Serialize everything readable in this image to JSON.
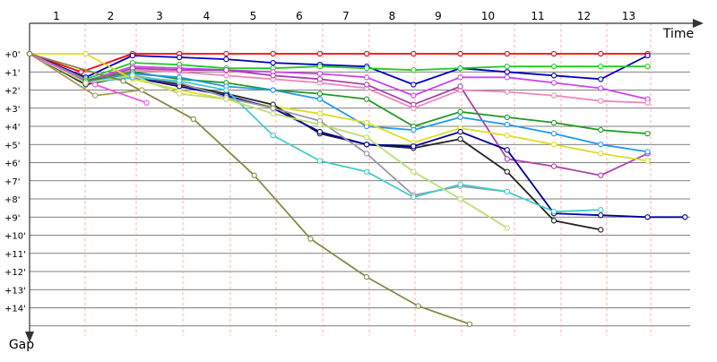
{
  "chart_data": {
    "type": "line",
    "title": "",
    "xlabel": "Time",
    "ylabel": "Gap",
    "x_ticks": [
      "1",
      "2",
      "3",
      "4",
      "5",
      "6",
      "7",
      "8",
      "9",
      "10",
      "11",
      "12",
      "13"
    ],
    "y_ticks": [
      "+0'",
      "+1'",
      "+2'",
      "+3'",
      "+4'",
      "+5'",
      "+6'",
      "+7'",
      "+8'",
      "+9'",
      "+10'",
      "+11'",
      "+12'",
      "+13'",
      "+14'"
    ],
    "xlim": [
      0,
      14.3
    ],
    "ylim": [
      0,
      15.5
    ],
    "grid": true,
    "series": [
      {
        "color": "#ff0000",
        "points": [
          [
            0,
            0
          ],
          [
            1.1,
            1
          ],
          [
            2.2,
            0
          ],
          [
            3.2,
            0
          ],
          [
            4.2,
            0
          ],
          [
            5.2,
            0
          ],
          [
            6.2,
            0
          ],
          [
            7.2,
            0
          ],
          [
            8.2,
            0
          ],
          [
            9.2,
            0
          ],
          [
            10.2,
            0
          ],
          [
            11.2,
            0
          ],
          [
            12.2,
            0
          ],
          [
            13.2,
            0
          ]
        ]
      },
      {
        "color": "#0000c0",
        "points": [
          [
            0,
            0
          ],
          [
            1.2,
            1.3
          ],
          [
            2.2,
            0.1
          ],
          [
            3.2,
            0.2
          ],
          [
            4.2,
            0.3
          ],
          [
            5.2,
            0.5
          ],
          [
            6.2,
            0.6
          ],
          [
            7.2,
            0.7
          ],
          [
            8.2,
            1.7
          ],
          [
            9.2,
            0.8
          ],
          [
            10.2,
            1.0
          ],
          [
            11.2,
            1.2
          ],
          [
            12.2,
            1.4
          ],
          [
            13.2,
            0.1
          ]
        ]
      },
      {
        "color": "#22cc22",
        "points": [
          [
            0,
            0
          ],
          [
            1.2,
            1.4
          ],
          [
            2.2,
            0.5
          ],
          [
            3.2,
            0.6
          ],
          [
            4.2,
            0.8
          ],
          [
            5.2,
            0.8
          ],
          [
            6.2,
            0.7
          ],
          [
            7.2,
            0.8
          ],
          [
            8.2,
            0.9
          ],
          [
            9.2,
            0.8
          ],
          [
            10.2,
            0.7
          ],
          [
            11.2,
            0.7
          ],
          [
            12.2,
            0.7
          ],
          [
            13.2,
            0.7
          ]
        ]
      },
      {
        "color": "#cc44ee",
        "points": [
          [
            0,
            0
          ],
          [
            1.2,
            1.5
          ],
          [
            2.2,
            0.7
          ],
          [
            3.2,
            0.8
          ],
          [
            4.2,
            0.9
          ],
          [
            5.2,
            1.0
          ],
          [
            6.2,
            1.1
          ],
          [
            7.2,
            1.3
          ],
          [
            8.2,
            2.3
          ],
          [
            9.2,
            1.3
          ],
          [
            10.2,
            1.3
          ],
          [
            11.2,
            1.6
          ],
          [
            12.2,
            1.9
          ],
          [
            13.2,
            2.5
          ]
        ]
      },
      {
        "color": "#ee88bb",
        "points": [
          [
            0,
            0
          ],
          [
            1.2,
            1.6
          ],
          [
            2.2,
            0.9
          ],
          [
            3.2,
            1.0
          ],
          [
            4.2,
            1.2
          ],
          [
            5.2,
            1.4
          ],
          [
            6.2,
            1.6
          ],
          [
            7.2,
            1.9
          ],
          [
            8.2,
            3.0
          ],
          [
            9.2,
            2.0
          ],
          [
            10.2,
            2.1
          ],
          [
            11.2,
            2.3
          ],
          [
            12.2,
            2.6
          ],
          [
            13.2,
            2.7
          ]
        ]
      },
      {
        "color": "#aa44aa",
        "points": [
          [
            0,
            0
          ],
          [
            1.2,
            1.6
          ],
          [
            2.2,
            0.8
          ],
          [
            3.2,
            0.9
          ],
          [
            4.2,
            0.9
          ],
          [
            5.2,
            1.2
          ],
          [
            6.2,
            1.4
          ],
          [
            7.2,
            1.7
          ],
          [
            8.2,
            2.8
          ],
          [
            9.2,
            1.8
          ],
          [
            10.2,
            5.8
          ],
          [
            11.2,
            6.2
          ],
          [
            12.2,
            6.7
          ],
          [
            13.2,
            5.5
          ]
        ]
      },
      {
        "color": "#229922",
        "points": [
          [
            0,
            0
          ],
          [
            1.2,
            1.5
          ],
          [
            2.2,
            1.0
          ],
          [
            3.2,
            1.4
          ],
          [
            4.2,
            1.6
          ],
          [
            5.2,
            2.0
          ],
          [
            6.2,
            2.2
          ],
          [
            7.2,
            2.5
          ],
          [
            8.2,
            4.0
          ],
          [
            9.2,
            3.2
          ],
          [
            10.2,
            3.5
          ],
          [
            11.2,
            3.8
          ],
          [
            12.2,
            4.2
          ],
          [
            13.2,
            4.4
          ]
        ]
      },
      {
        "color": "#2299ee",
        "points": [
          [
            0,
            0
          ],
          [
            1.2,
            1.6
          ],
          [
            2.2,
            1.1
          ],
          [
            3.2,
            1.3
          ],
          [
            4.2,
            1.8
          ],
          [
            5.2,
            2.0
          ],
          [
            6.2,
            2.5
          ],
          [
            7.2,
            4.0
          ],
          [
            8.2,
            4.2
          ],
          [
            9.2,
            3.5
          ],
          [
            10.2,
            3.9
          ],
          [
            11.2,
            4.4
          ],
          [
            12.2,
            5.0
          ],
          [
            13.2,
            5.4
          ]
        ]
      },
      {
        "color": "#dddd22",
        "points": [
          [
            0,
            0
          ],
          [
            1.2,
            0
          ],
          [
            2.2,
            1.4
          ],
          [
            3.2,
            2.0
          ],
          [
            4.2,
            2.5
          ],
          [
            5.2,
            2.9
          ],
          [
            6.2,
            3.3
          ],
          [
            7.2,
            3.8
          ],
          [
            8.2,
            4.9
          ],
          [
            9.2,
            4.1
          ],
          [
            10.2,
            4.5
          ],
          [
            11.2,
            5.0
          ],
          [
            12.2,
            5.5
          ],
          [
            13.2,
            5.9
          ]
        ]
      },
      {
        "color": "#222222",
        "points": [
          [
            0,
            0
          ],
          [
            1.2,
            1.7
          ],
          [
            2.2,
            1.2
          ],
          [
            3.2,
            1.7
          ],
          [
            4.2,
            2.2
          ],
          [
            5.2,
            2.8
          ],
          [
            6.2,
            4.4
          ],
          [
            7.2,
            5.0
          ],
          [
            8.2,
            5.2
          ],
          [
            9.2,
            4.7
          ],
          [
            10.2,
            6.5
          ],
          [
            11.2,
            9.2
          ],
          [
            12.2,
            9.7
          ]
        ]
      },
      {
        "color": "#000099",
        "points": [
          [
            0,
            0
          ],
          [
            1.2,
            1.6
          ],
          [
            2.2,
            1.3
          ],
          [
            3.2,
            1.8
          ],
          [
            4.2,
            2.3
          ],
          [
            5.2,
            3.0
          ],
          [
            6.2,
            4.3
          ],
          [
            7.2,
            5.0
          ],
          [
            8.2,
            5.1
          ],
          [
            9.2,
            4.3
          ],
          [
            10.2,
            5.3
          ],
          [
            11.2,
            8.8
          ],
          [
            12.2,
            8.9
          ],
          [
            13.2,
            9.0
          ],
          [
            14.0,
            9.0
          ]
        ]
      },
      {
        "color": "#9999aa",
        "points": [
          [
            0,
            0
          ],
          [
            1.2,
            1.6
          ],
          [
            2.2,
            1.2
          ],
          [
            3.2,
            1.6
          ],
          [
            4.2,
            2.4
          ],
          [
            5.2,
            3.0
          ],
          [
            6.2,
            3.7
          ],
          [
            7.2,
            5.5
          ],
          [
            8.2,
            7.8
          ],
          [
            9.2,
            7.3
          ],
          [
            10.2,
            7.6
          ]
        ]
      },
      {
        "color": "#44cccc",
        "points": [
          [
            0,
            0
          ],
          [
            1.2,
            1.6
          ],
          [
            2.2,
            1.3
          ],
          [
            3.2,
            1.5
          ],
          [
            4.2,
            2.0
          ],
          [
            5.2,
            4.5
          ],
          [
            6.2,
            5.9
          ],
          [
            7.2,
            6.5
          ],
          [
            8.2,
            7.9
          ],
          [
            9.2,
            7.2
          ],
          [
            10.2,
            7.6
          ],
          [
            11.2,
            8.7
          ],
          [
            12.2,
            8.6
          ]
        ]
      },
      {
        "color": "#bbdd77",
        "points": [
          [
            0,
            0
          ],
          [
            1.2,
            1.6
          ],
          [
            2.2,
            1.2
          ],
          [
            3.2,
            2.2
          ],
          [
            4.2,
            2.5
          ],
          [
            5.2,
            3.3
          ],
          [
            6.2,
            3.9
          ],
          [
            7.2,
            4.6
          ],
          [
            8.2,
            6.5
          ],
          [
            9.2,
            8.0
          ],
          [
            10.2,
            9.6
          ]
        ]
      },
      {
        "color": "#aa9955",
        "points": [
          [
            0,
            0
          ],
          [
            1.4,
            2.3
          ],
          [
            2.4,
            2.0
          ]
        ]
      },
      {
        "color": "#ee55ee",
        "points": [
          [
            0,
            0
          ],
          [
            1.4,
            1.7
          ],
          [
            2.5,
            2.7
          ]
        ]
      },
      {
        "color": "#888844",
        "points": [
          [
            0,
            0
          ],
          [
            2.0,
            1.5
          ],
          [
            3.5,
            3.6
          ],
          [
            4.8,
            6.7
          ],
          [
            6.0,
            10.2
          ],
          [
            7.2,
            12.3
          ],
          [
            8.3,
            13.9
          ],
          [
            9.4,
            14.9
          ]
        ]
      }
    ]
  }
}
